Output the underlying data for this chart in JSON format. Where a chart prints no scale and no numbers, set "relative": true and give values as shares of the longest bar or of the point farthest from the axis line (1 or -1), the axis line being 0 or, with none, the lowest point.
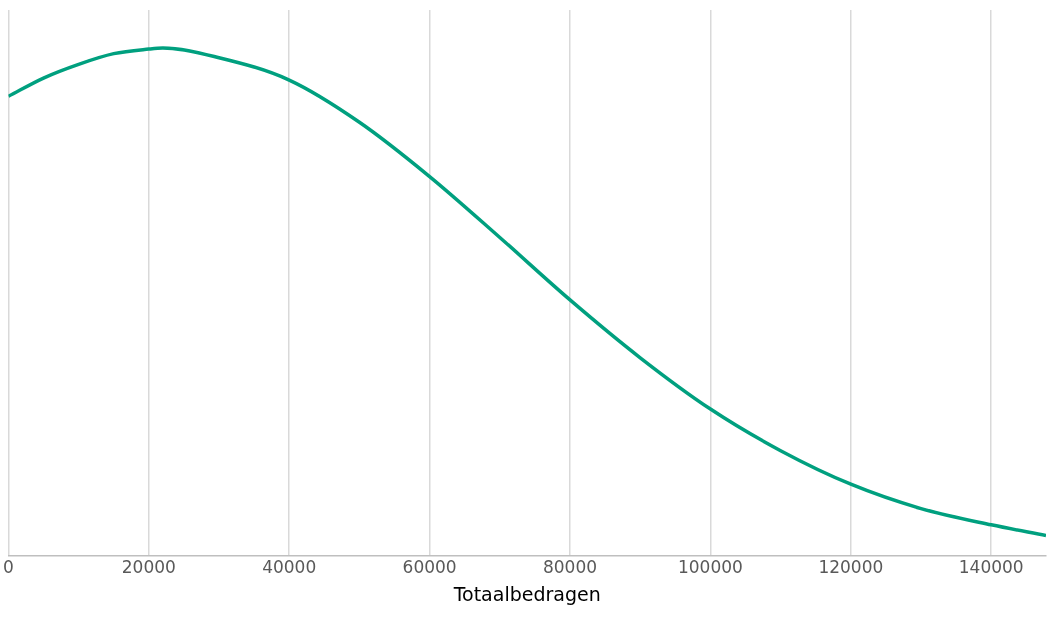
{
  "chart_data": {
    "type": "line",
    "xlabel": "Totaalbedragen",
    "relative": true,
    "x": [
      0,
      5000,
      10000,
      15000,
      20000,
      22000,
      30000,
      40000,
      50000,
      60000,
      70000,
      80000,
      90000,
      100000,
      110000,
      120000,
      130000,
      140000,
      147800
    ],
    "series": [
      {
        "color": "#00a07f",
        "values": [
          0.905,
          0.941,
          0.968,
          0.989,
          0.998,
          1,
          0.981,
          0.937,
          0.854,
          0.747,
          0.627,
          0.504,
          0.39,
          0.289,
          0.207,
          0.141,
          0.093,
          0.061,
          0.04
        ]
      }
    ],
    "xlim": [
      0,
      147800
    ],
    "xticks": [
      0,
      20000,
      40000,
      60000,
      80000,
      100000,
      120000,
      140000
    ],
    "grid": "x",
    "legend": false,
    "marker": "none",
    "line_style": "solid"
  }
}
